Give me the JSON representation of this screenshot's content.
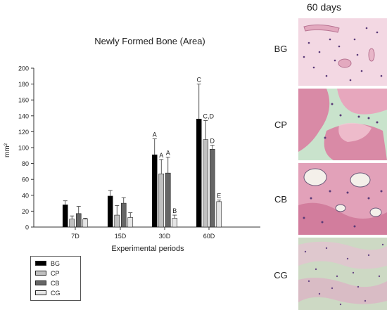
{
  "chart_data": {
    "type": "bar",
    "title": "Newly Formed Bone (Area)",
    "xlabel": "Experimental periods",
    "ylabel": "mm²",
    "ylim": [
      0,
      200
    ],
    "yticks": [
      "0",
      "20",
      "40",
      "60",
      "80",
      "100",
      "120",
      "140",
      "160",
      "180",
      "200"
    ],
    "categories": [
      "7D",
      "15D",
      "30D",
      "60D"
    ],
    "series": [
      {
        "name": "BG",
        "color": "#000000",
        "values": [
          28,
          39,
          91,
          136
        ],
        "errors": [
          5,
          7,
          20,
          44
        ],
        "labels": [
          "",
          "",
          "A",
          "C"
        ]
      },
      {
        "name": "CP",
        "color": "#c0c0c0",
        "values": [
          10,
          15,
          67,
          110
        ],
        "errors": [
          4,
          12,
          18,
          24
        ],
        "labels": [
          "",
          "",
          "A",
          "C,D"
        ]
      },
      {
        "name": "CB",
        "color": "#666666",
        "values": [
          17,
          30,
          68,
          98
        ],
        "errors": [
          9,
          7,
          20,
          5
        ],
        "labels": [
          "",
          "",
          "A",
          "D"
        ]
      },
      {
        "name": "CG",
        "color": "#e6e6e6",
        "values": [
          10,
          12,
          11,
          32
        ],
        "errors": [
          1,
          6,
          4,
          2
        ],
        "labels": [
          "",
          "",
          "B",
          "E"
        ]
      }
    ],
    "legend_position": "bottom-left",
    "grid": false
  },
  "panel": {
    "title": "60 days",
    "labels": [
      "BG",
      "CP",
      "CB",
      "CG"
    ]
  },
  "colors": {
    "tissue_pink": "#e9b3c6",
    "tissue_dark_pink": "#d77ea0",
    "tissue_pale": "#f4dde6",
    "tissue_green": "#c9e3cc",
    "nucleus": "#5a3a78"
  }
}
